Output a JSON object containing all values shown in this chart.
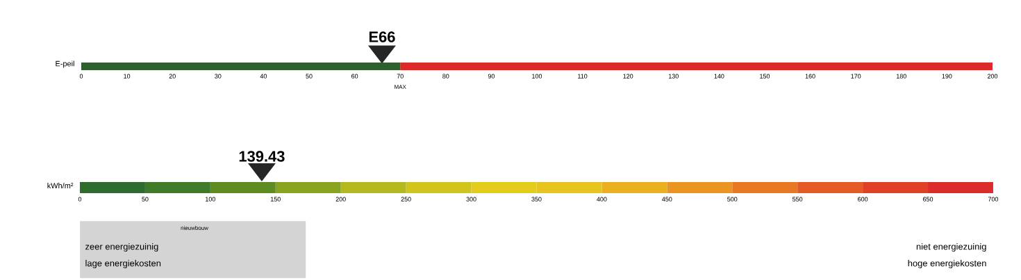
{
  "chart_data": [
    {
      "type": "bar",
      "orientation": "horizontal",
      "stacked": true,
      "categories": [
        "E-peil"
      ],
      "xlim": [
        0,
        200
      ],
      "xticks": [
        0,
        10,
        20,
        30,
        40,
        50,
        60,
        70,
        80,
        90,
        100,
        110,
        120,
        130,
        140,
        150,
        160,
        170,
        180,
        190,
        200
      ],
      "series": [
        {
          "color": "#2f5f2f",
          "values": [
            70
          ]
        },
        {
          "color": "#dc2a2a",
          "values": [
            130
          ]
        },
        {
          "type": "scatter",
          "marker": "triangle",
          "color": "#262626",
          "values": [
            66
          ],
          "value_labels": [
            "E66"
          ]
        }
      ],
      "annotations": [
        "MAX"
      ]
    },
    {
      "type": "bar",
      "orientation": "horizontal",
      "stacked": true,
      "categories": [
        "kWh/m²"
      ],
      "xlim": [
        0,
        700
      ],
      "xticks": [
        0,
        50,
        100,
        150,
        200,
        250,
        300,
        350,
        400,
        450,
        500,
        550,
        600,
        650,
        700
      ],
      "series": [
        {
          "color": "#2e6b2e",
          "values": [
            50
          ]
        },
        {
          "color": "#3f7a28",
          "values": [
            50
          ]
        },
        {
          "color": "#5e8c22",
          "values": [
            50
          ]
        },
        {
          "color": "#8aa31f",
          "values": [
            50
          ]
        },
        {
          "color": "#b5b81c",
          "values": [
            50
          ]
        },
        {
          "color": "#d2c41a",
          "values": [
            50
          ]
        },
        {
          "color": "#e2cc1c",
          "values": [
            50
          ]
        },
        {
          "color": "#e8c41e",
          "values": [
            50
          ]
        },
        {
          "color": "#eab020",
          "values": [
            50
          ]
        },
        {
          "color": "#ea9422",
          "values": [
            50
          ]
        },
        {
          "color": "#e87824",
          "values": [
            50
          ]
        },
        {
          "color": "#e45a26",
          "values": [
            50
          ]
        },
        {
          "color": "#e04028",
          "values": [
            50
          ]
        },
        {
          "color": "#dc2b2b",
          "values": [
            50
          ]
        },
        {
          "type": "scatter",
          "marker": "triangle",
          "color": "#262626",
          "values": [
            139.43
          ],
          "value_labels": [
            "139.43"
          ]
        }
      ],
      "annotations": [
        "nieuwbouw",
        "zeer energiezuinig",
        "lage energiekosten",
        "niet energiezuinig",
        "hoge energiekosten"
      ]
    }
  ]
}
